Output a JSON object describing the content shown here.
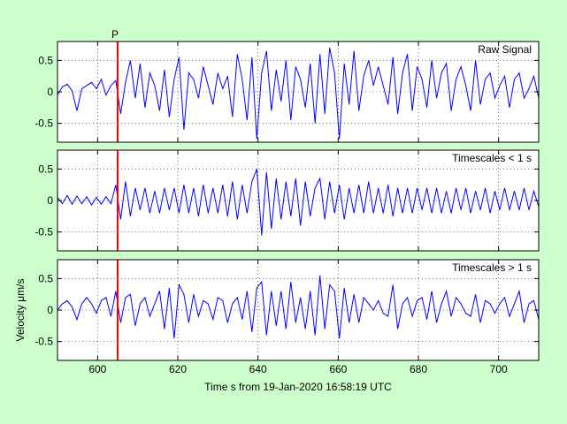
{
  "figure": {
    "background": "#ccffcc",
    "xlabel": "Time s from 19-Jan-2020 16:58:19 UTC",
    "ylabel": "Velocity μm/s",
    "pick_label": "P",
    "pick_time": 605,
    "pick_color": "#ff0000",
    "trace_color": "#0000ff",
    "grid": "dotted"
  },
  "chart_data": [
    {
      "type": "line",
      "title": "Raw Signal",
      "xlim": [
        590,
        710
      ],
      "ylim": [
        -0.8,
        0.8
      ],
      "xticks": [
        600,
        620,
        640,
        660,
        680,
        700
      ],
      "xtick_labels": [],
      "yticks": [
        0.5,
        0,
        -0.5
      ],
      "ytick_labels": [
        "0.5",
        "0",
        "-0.5"
      ],
      "series": [
        {
          "values": [
            -0.05,
            0.08,
            0.12,
            0.02,
            -0.3,
            0.05,
            0.1,
            0.15,
            0.05,
            0.2,
            -0.05,
            0.1,
            0.18,
            -0.35,
            0.15,
            0.5,
            -0.1,
            0.45,
            -0.25,
            0.3,
            0.1,
            -0.3,
            0.35,
            -0.4,
            0.2,
            0.55,
            -0.6,
            0.3,
            0.2,
            -0.1,
            0.4,
            0.1,
            -0.2,
            0.3,
            0.05,
            0.25,
            -0.4,
            0.6,
            0.2,
            -0.45,
            0.55,
            -0.75,
            0.3,
            0.65,
            -0.3,
            0.35,
            -0.15,
            0.5,
            -0.45,
            0.4,
            0.2,
            -0.25,
            0.45,
            -0.5,
            0.6,
            -0.35,
            0.7,
            0.3,
            -0.75,
            0.45,
            -0.2,
            0.65,
            -0.3,
            0.25,
            0.5,
            0.1,
            0.4,
            0.1,
            -0.2,
            0.55,
            -0.35,
            0.3,
            0.6,
            -0.3,
            0.4,
            0.2,
            -0.25,
            0.5,
            -0.1,
            0.3,
            0.45,
            -0.3,
            0.2,
            0.4,
            0.1,
            -0.3,
            0.5,
            -0.2,
            0.2,
            0.3,
            -0.1,
            0.1,
            0.25,
            -0.25,
            0.2,
            0.3,
            -0.1,
            0.05,
            0.25,
            -0.1
          ]
        }
      ]
    },
    {
      "type": "line",
      "title": "Timescales < 1 s",
      "xlim": [
        590,
        710
      ],
      "ylim": [
        -0.8,
        0.8
      ],
      "xticks": [
        600,
        620,
        640,
        660,
        680,
        700
      ],
      "xtick_labels": [],
      "yticks": [
        0.5,
        0,
        -0.5
      ],
      "ytick_labels": [
        "0.5",
        "0",
        "-0.5"
      ],
      "series": [
        {
          "values": [
            0.05,
            -0.05,
            0.08,
            -0.06,
            0.07,
            -0.05,
            0.06,
            -0.07,
            0.05,
            -0.06,
            0.06,
            -0.05,
            0.25,
            -0.3,
            0.3,
            -0.25,
            0.2,
            -0.15,
            0.2,
            -0.2,
            0.15,
            -0.2,
            0.2,
            -0.15,
            0.2,
            -0.2,
            0.25,
            -0.2,
            0.2,
            -0.25,
            0.25,
            -0.2,
            0.2,
            -0.2,
            0.25,
            -0.25,
            0.3,
            -0.3,
            0.25,
            -0.2,
            0.3,
            0.5,
            -0.55,
            0.45,
            -0.45,
            0.35,
            -0.3,
            0.3,
            -0.25,
            0.35,
            -0.4,
            0.3,
            -0.25,
            0.2,
            0.35,
            -0.3,
            0.3,
            -0.2,
            0.25,
            -0.3,
            0.2,
            -0.2,
            0.25,
            -0.2,
            0.3,
            -0.2,
            0.2,
            -0.2,
            0.25,
            -0.25,
            0.2,
            -0.2,
            0.2,
            -0.2,
            0.2,
            -0.15,
            0.2,
            -0.2,
            0.2,
            -0.2,
            0.15,
            -0.2,
            0.2,
            -0.15,
            0.2,
            -0.2,
            0.15,
            -0.15,
            0.2,
            -0.2,
            0.15,
            -0.15,
            0.2,
            -0.15,
            0.15,
            -0.15,
            0.2,
            -0.15,
            0.15,
            -0.1
          ]
        }
      ]
    },
    {
      "type": "line",
      "title": "Timescales > 1 s",
      "xlim": [
        590,
        710
      ],
      "ylim": [
        -0.8,
        0.8
      ],
      "xticks": [
        600,
        620,
        640,
        660,
        680,
        700
      ],
      "xtick_labels": [
        "600",
        "620",
        "640",
        "660",
        "680",
        "700"
      ],
      "yticks": [
        0.5,
        0,
        -0.5
      ],
      "ytick_labels": [
        "0.5",
        "0",
        "-0.5"
      ],
      "series": [
        {
          "values": [
            0.0,
            0.1,
            0.15,
            0.05,
            -0.15,
            0.1,
            0.2,
            0.1,
            -0.05,
            0.15,
            0.2,
            -0.1,
            0.3,
            -0.2,
            0.2,
            0.25,
            -0.25,
            0.1,
            0.2,
            -0.1,
            0.1,
            0.3,
            -0.3,
            0.35,
            -0.45,
            0.4,
            0.25,
            -0.2,
            0.25,
            -0.1,
            0.15,
            0.1,
            -0.15,
            0.2,
            0.15,
            -0.2,
            0.1,
            0.2,
            -0.15,
            0.3,
            -0.35,
            0.35,
            0.45,
            -0.4,
            0.3,
            -0.25,
            0.3,
            -0.3,
            0.45,
            -0.2,
            0.2,
            -0.3,
            0.3,
            -0.4,
            0.55,
            -0.3,
            0.4,
            0.3,
            -0.45,
            0.35,
            -0.2,
            0.25,
            -0.2,
            0.2,
            0.1,
            0.0,
            0.15,
            -0.05,
            -0.1,
            0.4,
            -0.3,
            0.1,
            0.2,
            -0.1,
            0.15,
            0.2,
            -0.15,
            0.3,
            -0.2,
            0.1,
            0.3,
            -0.1,
            0.2,
            0.1,
            -0.05,
            -0.1,
            0.25,
            -0.2,
            0.15,
            0.1,
            -0.05,
            0.1,
            0.2,
            -0.1,
            0.1,
            0.3,
            -0.2,
            0.1,
            0.15,
            -0.15
          ]
        }
      ]
    }
  ]
}
